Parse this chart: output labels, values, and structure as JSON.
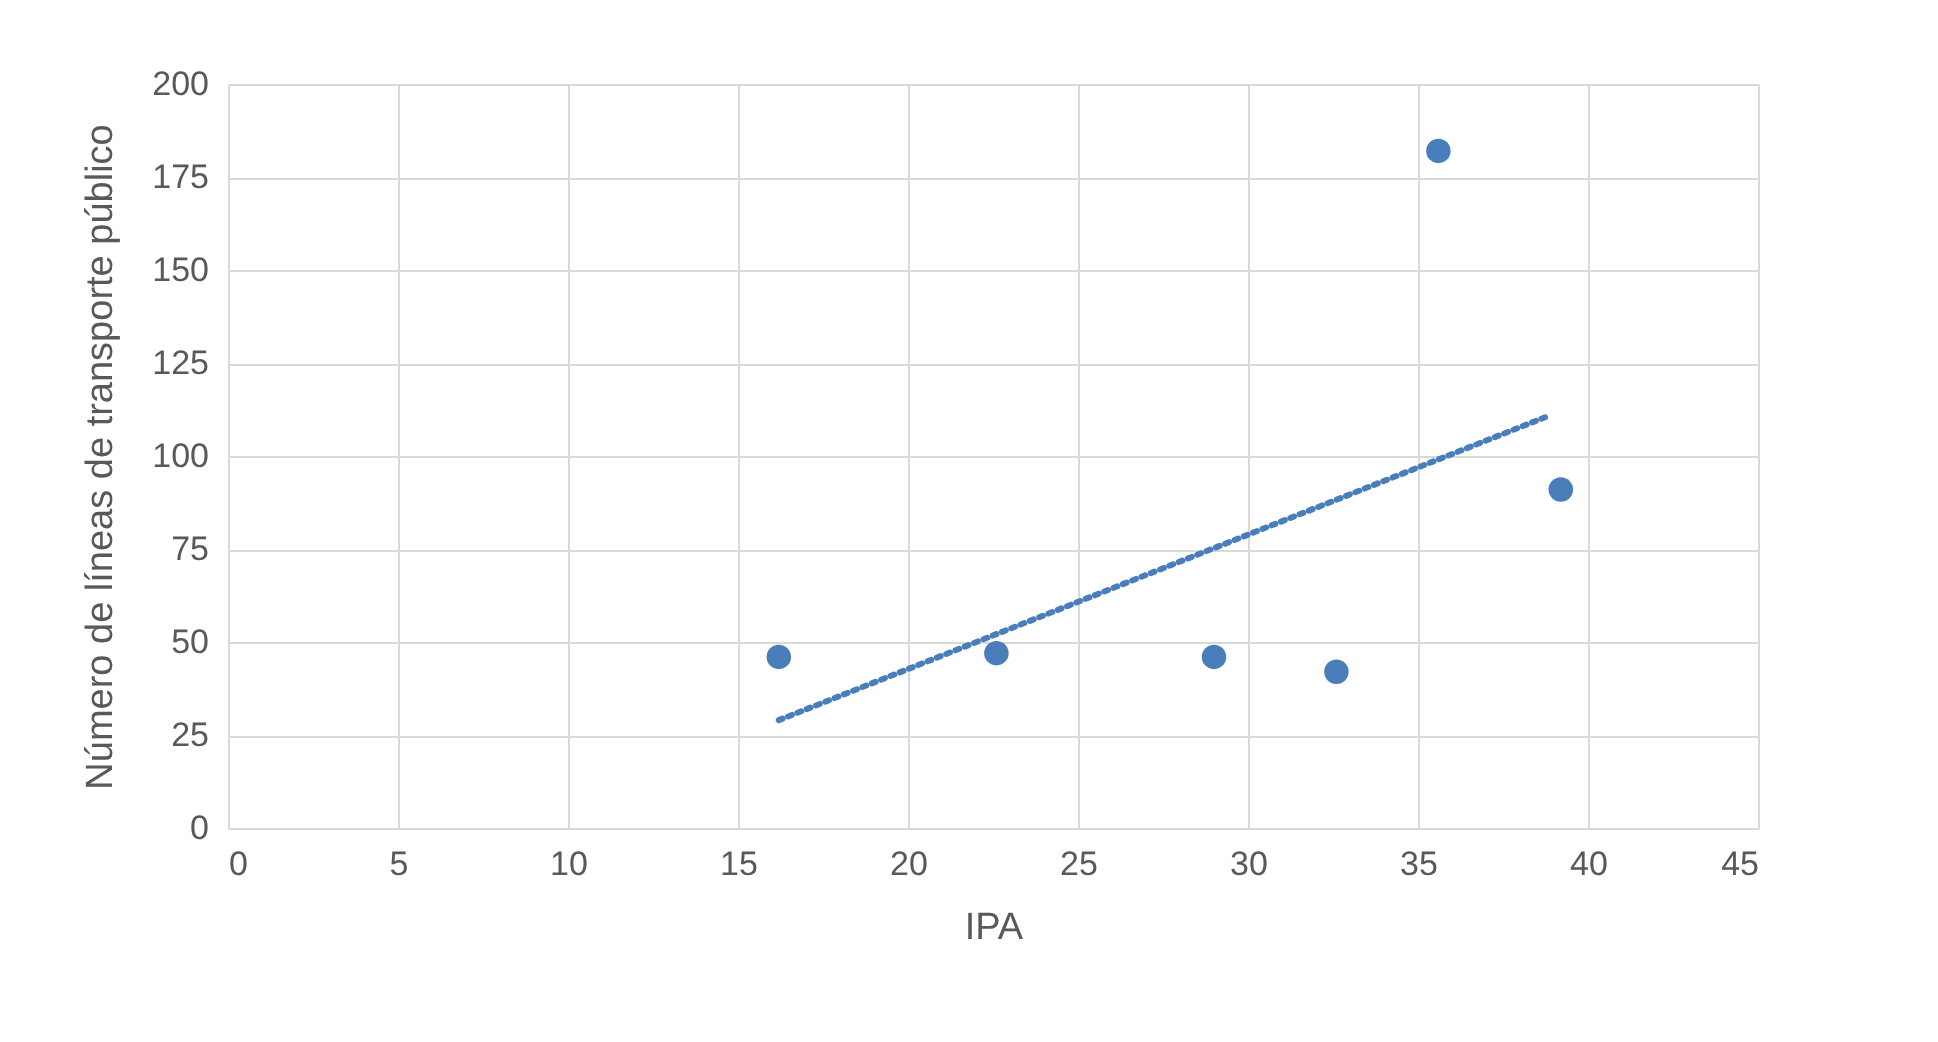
{
  "chart_data": {
    "type": "scatter",
    "xlabel": "IPA",
    "ylabel": "Número de líneas de transporte público",
    "xlim": [
      0,
      45
    ],
    "xticks": [
      0,
      5,
      10,
      15,
      20,
      25,
      30,
      35,
      40,
      45
    ],
    "ylim": [
      0,
      200
    ],
    "yticks": [
      0,
      25,
      50,
      75,
      100,
      125,
      150,
      175,
      200
    ],
    "grid": true,
    "marker": "circle",
    "series": [
      {
        "color": "#4a7ebb",
        "x": [
          16.2,
          22.6,
          29.0,
          32.6,
          35.6,
          39.2
        ],
        "values": [
          46,
          47,
          46,
          42,
          182,
          91
        ]
      },
      {
        "type": "line",
        "color": "#4a7ebb",
        "line_style": "dotted",
        "marker": "none",
        "x": [
          16.2,
          38.9
        ],
        "values": [
          29,
          111
        ]
      }
    ]
  }
}
